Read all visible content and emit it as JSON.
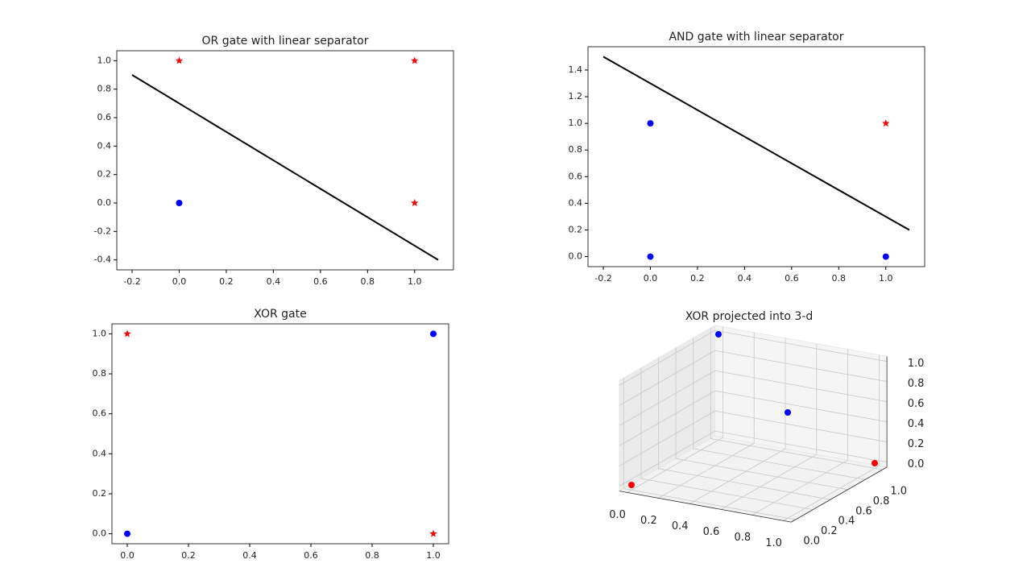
{
  "chart_data": [
    {
      "type": "scatter",
      "title": "OR gate with linear separator",
      "xlim": [
        -0.265,
        1.165
      ],
      "ylim": [
        -0.47,
        1.07
      ],
      "xticks": [
        -0.2,
        {
          "value": 0,
          "label": "0.0"
        },
        0.2,
        0.4,
        0.6,
        0.8,
        {
          "value": 1,
          "label": "1.0"
        }
      ],
      "yticks": [
        -0.4,
        -0.2,
        {
          "value": 0,
          "label": "0.0"
        },
        0.2,
        0.4,
        0.6,
        0.8,
        {
          "value": 1,
          "label": "1.0"
        }
      ],
      "series": [
        {
          "marker": "star",
          "color": "#ff0000",
          "x": [
            0,
            1,
            1
          ],
          "values": [
            1,
            1,
            0
          ]
        },
        {
          "marker": "circle",
          "color": "#0000ff",
          "x": [
            0
          ],
          "values": [
            0
          ]
        },
        {
          "marker": "line",
          "color": "#000000",
          "x": [
            -0.2,
            1.1
          ],
          "values": [
            0.9,
            -0.4
          ]
        }
      ]
    },
    {
      "type": "scatter",
      "title": "AND gate with linear separator",
      "xlim": [
        -0.265,
        1.165
      ],
      "ylim": [
        -0.075,
        1.575
      ],
      "xticks": [
        -0.2,
        {
          "value": 0,
          "label": "0.0"
        },
        0.2,
        0.4,
        0.6,
        0.8,
        {
          "value": 1,
          "label": "1.0"
        }
      ],
      "yticks": [
        {
          "value": 0,
          "label": "0.0"
        },
        0.2,
        0.4,
        0.6,
        0.8,
        {
          "value": 1,
          "label": "1.0"
        },
        1.2,
        1.4
      ],
      "series": [
        {
          "marker": "circle",
          "color": "#0000ff",
          "x": [
            0,
            0,
            1
          ],
          "values": [
            0,
            1,
            0
          ]
        },
        {
          "marker": "star",
          "color": "#ff0000",
          "x": [
            1
          ],
          "values": [
            1
          ]
        },
        {
          "marker": "line",
          "color": "#000000",
          "x": [
            -0.2,
            1.1
          ],
          "values": [
            1.5,
            0.2
          ]
        }
      ]
    },
    {
      "type": "scatter",
      "title": "XOR gate",
      "xlim": [
        -0.05,
        1.05
      ],
      "ylim": [
        -0.05,
        1.05
      ],
      "xticks": [
        {
          "value": 0,
          "label": "0.0"
        },
        0.2,
        0.4,
        0.6,
        0.8,
        {
          "value": 1,
          "label": "1.0"
        }
      ],
      "yticks": [
        {
          "value": 0,
          "label": "0.0"
        },
        0.2,
        0.4,
        0.6,
        0.8,
        {
          "value": 1,
          "label": "1.0"
        }
      ],
      "series": [
        {
          "marker": "star",
          "color": "#ff0000",
          "x": [
            0,
            1
          ],
          "values": [
            1,
            0
          ]
        },
        {
          "marker": "circle",
          "color": "#0000ff",
          "x": [
            0,
            1
          ],
          "values": [
            0,
            1
          ]
        }
      ]
    },
    {
      "type": "scatter3d",
      "title": "XOR projected into 3-d",
      "xlim": [
        -0.05,
        1.05
      ],
      "ylim": [
        -0.05,
        1.05
      ],
      "zlim": [
        -0.05,
        1.05
      ],
      "xticks": [
        {
          "value": 0,
          "label": "0.0"
        },
        0.2,
        0.4,
        0.6,
        0.8,
        {
          "value": 1,
          "label": "1.0"
        }
      ],
      "yticks": [
        {
          "value": 0,
          "label": "0.0"
        },
        0.2,
        0.4,
        0.6,
        0.8,
        {
          "value": 1,
          "label": "1.0"
        }
      ],
      "zticks": [
        {
          "value": 0,
          "label": "0.0"
        },
        0.2,
        0.4,
        0.6,
        0.8,
        {
          "value": 1,
          "label": "1.0"
        }
      ],
      "series": [
        {
          "color": "#ff0000",
          "x": [
            0,
            1
          ],
          "y": [
            0,
            1
          ],
          "z": [
            0,
            0
          ]
        },
        {
          "color": "#0000ff",
          "x": [
            0,
            1
          ],
          "y": [
            1,
            0
          ],
          "z": [
            1,
            1
          ]
        }
      ]
    }
  ]
}
